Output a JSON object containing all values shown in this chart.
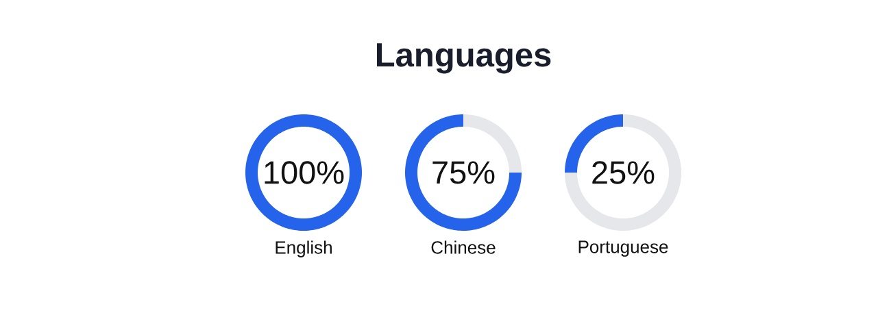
{
  "chart_data": [
    {
      "type": "other",
      "title": "Languages"
    },
    {
      "type": "donut",
      "title": "English",
      "categories": [
        null
      ],
      "values": [
        100
      ],
      "colors": [
        "#2563eb"
      ],
      "annotations": [
        "100%"
      ]
    },
    {
      "type": "donut",
      "title": "Chinese",
      "categories": [
        null,
        null
      ],
      "values": [
        75,
        25
      ],
      "colors": [
        "#2563eb",
        "#e5e7eb"
      ],
      "annotations": [
        "75%"
      ]
    },
    {
      "type": "donut",
      "title": "Portuguese",
      "categories": [
        null,
        null
      ],
      "values": [
        25,
        75
      ],
      "colors": [
        "#2563eb",
        "#e5e7eb"
      ],
      "annotations": [
        "25%"
      ]
    }
  ]
}
